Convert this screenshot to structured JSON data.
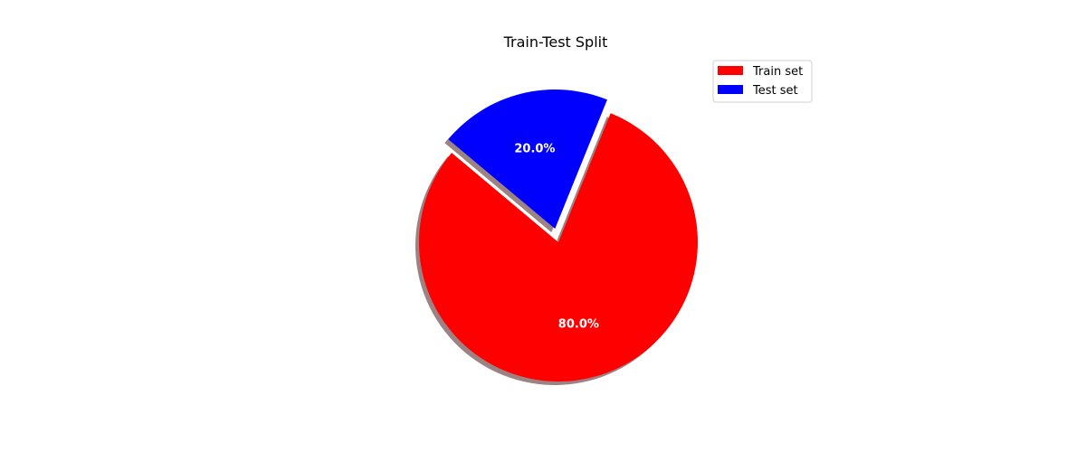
{
  "chart_data": {
    "type": "pie",
    "title": "Train-Test Split",
    "categories": [
      "Train set",
      "Test set"
    ],
    "values": [
      80,
      20
    ],
    "labels": [
      "80.0%",
      "20.0%"
    ],
    "colors": [
      "#ff0000",
      "#0000ff"
    ],
    "explode": [
      0,
      0.1
    ],
    "shadow": true,
    "start_angle_deg": 140,
    "legend": {
      "placement": "top-right",
      "entries": [
        "Train set",
        "Test set"
      ]
    }
  }
}
